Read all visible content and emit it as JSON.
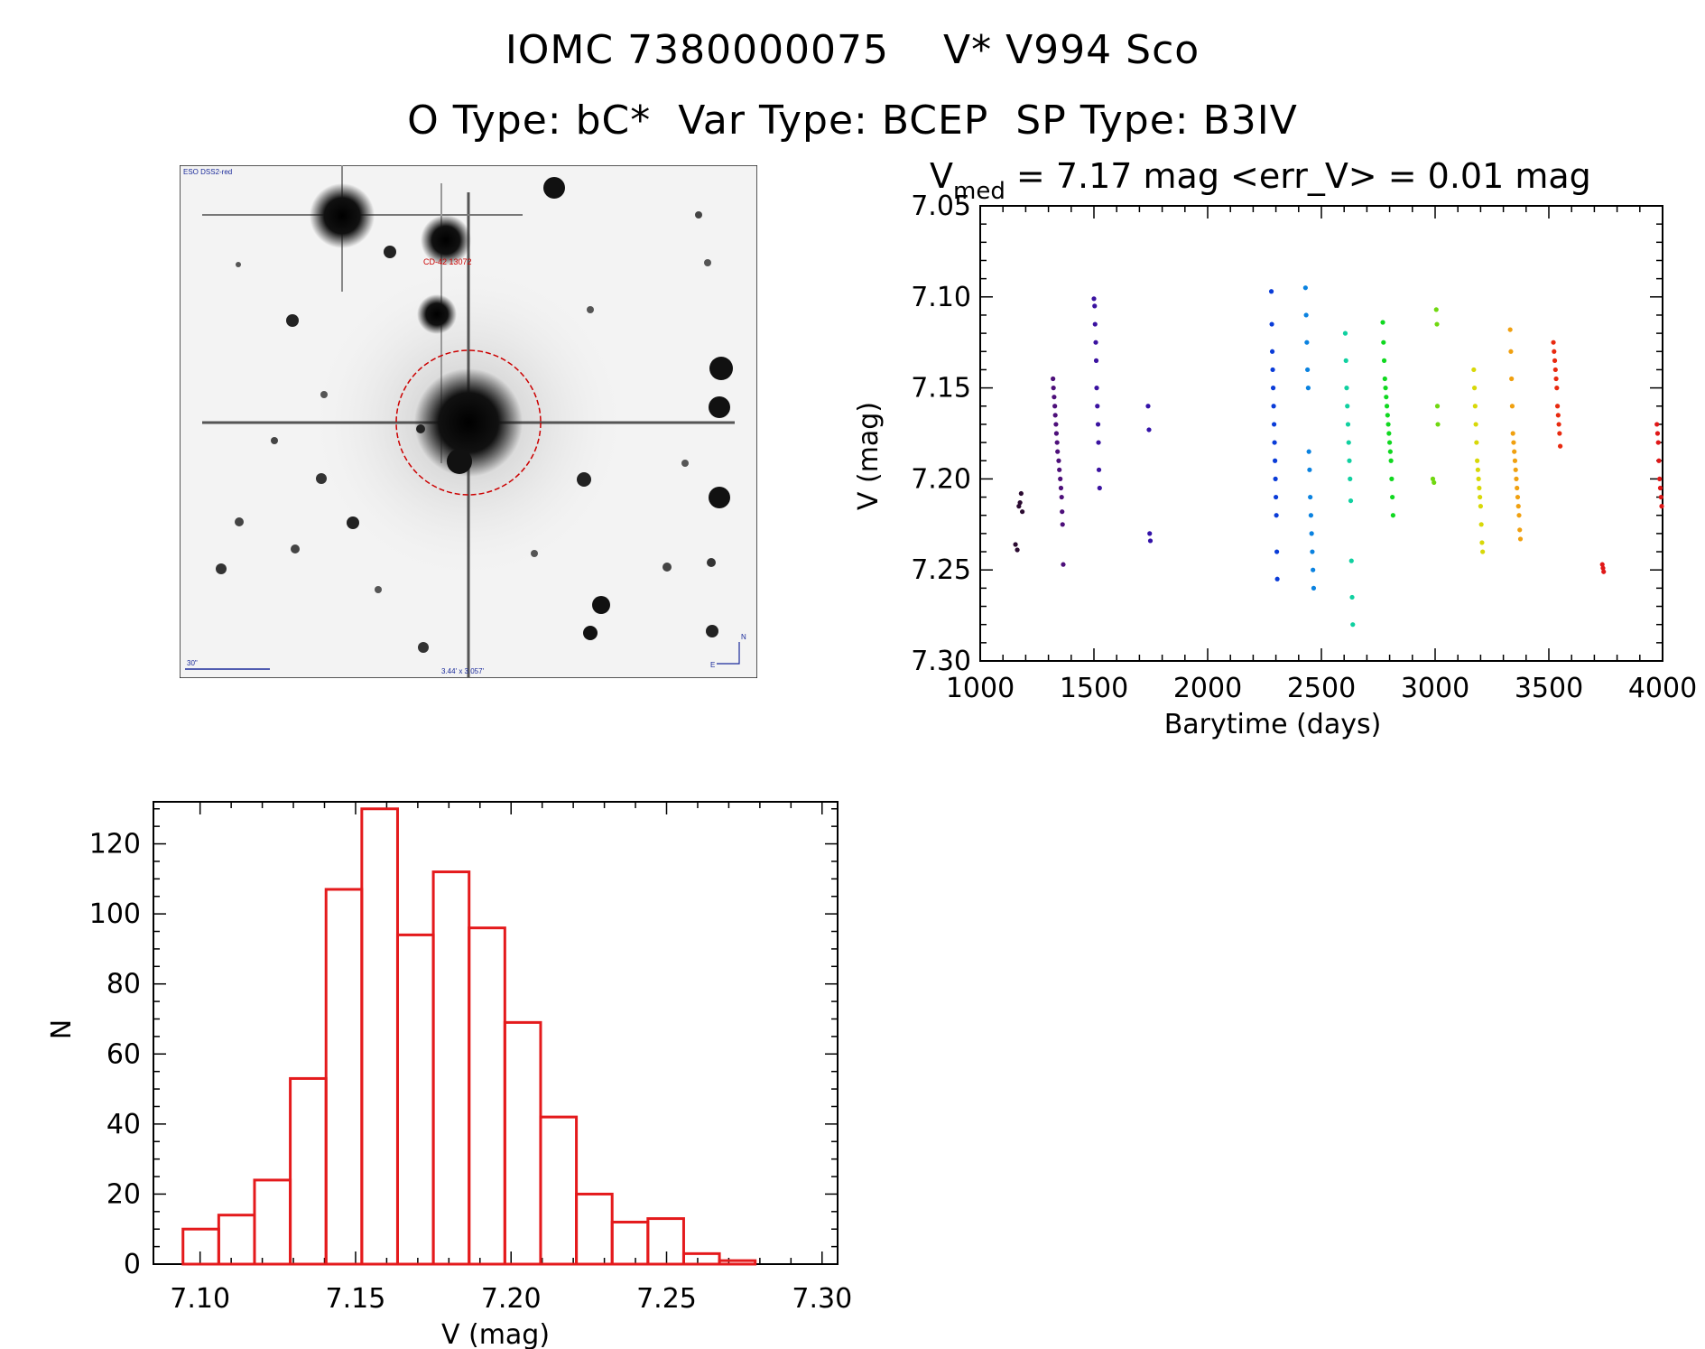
{
  "header": {
    "line1": "IOMC 7380000075    V* V994 Sco",
    "line2": "O Type: bC*  Var Type: BCEP  SP Type: B3IV"
  },
  "finder": {
    "survey_label": "ESO DSS2-red",
    "star_label": "CD-42 13072",
    "scale_label": "30\"",
    "fov_label": "3.44' x 3.057'",
    "north_label": "N",
    "east_label": "E",
    "circle_color": "#cc0000"
  },
  "chart_data": [
    {
      "type": "scatter",
      "title_prefix": "V",
      "title_sub": "med",
      "title_rest": " = 7.17 mag <err_V> = 0.01 mag",
      "xlabel": "Barytime (days)",
      "ylabel": "V (mag)",
      "xlim": [
        1000,
        4000
      ],
      "ylim": [
        7.3,
        7.05
      ],
      "x_ticks": [
        1000,
        1500,
        2000,
        2500,
        3000,
        3500,
        4000
      ],
      "y_ticks": [
        7.05,
        7.1,
        7.15,
        7.2,
        7.25,
        7.3
      ],
      "series": [
        {
          "name": "group-1",
          "color": "#2a0a30",
          "x": [
            1155,
            1163,
            1170,
            1175,
            1180,
            1185
          ],
          "y": [
            7.236,
            7.239,
            7.215,
            7.213,
            7.208,
            7.218
          ]
        },
        {
          "name": "group-2",
          "color": "#4d0f7a",
          "x": [
            1320,
            1322,
            1325,
            1328,
            1330,
            1333,
            1335,
            1338,
            1340,
            1345,
            1348,
            1352,
            1355,
            1358,
            1360,
            1362,
            1365
          ],
          "y": [
            7.145,
            7.15,
            7.155,
            7.16,
            7.165,
            7.17,
            7.175,
            7.18,
            7.185,
            7.19,
            7.195,
            7.2,
            7.205,
            7.21,
            7.218,
            7.225,
            7.247
          ]
        },
        {
          "name": "group-3",
          "color": "#3a12a0",
          "x": [
            1500,
            1503,
            1505,
            1508,
            1510,
            1512,
            1515,
            1518,
            1520,
            1522,
            1525
          ],
          "y": [
            7.101,
            7.105,
            7.115,
            7.125,
            7.135,
            7.15,
            7.16,
            7.17,
            7.18,
            7.195,
            7.205
          ]
        },
        {
          "name": "group-4",
          "color": "#3312a8",
          "x": [
            1738,
            1742,
            1745,
            1748
          ],
          "y": [
            7.16,
            7.173,
            7.23,
            7.234
          ]
        },
        {
          "name": "group-5",
          "color": "#0a3cd8",
          "x": [
            2280,
            2282,
            2284,
            2286,
            2288,
            2290,
            2292,
            2294,
            2296,
            2298,
            2300,
            2302,
            2304,
            2306
          ],
          "y": [
            7.097,
            7.115,
            7.13,
            7.14,
            7.15,
            7.16,
            7.17,
            7.18,
            7.19,
            7.2,
            7.21,
            7.22,
            7.24,
            7.255
          ]
        },
        {
          "name": "group-6",
          "color": "#0a82e0",
          "x": [
            2430,
            2433,
            2436,
            2439,
            2442,
            2445,
            2448,
            2451,
            2454,
            2457,
            2460,
            2463,
            2466
          ],
          "y": [
            7.095,
            7.11,
            7.125,
            7.14,
            7.15,
            7.185,
            7.195,
            7.21,
            7.22,
            7.23,
            7.24,
            7.25,
            7.26
          ]
        },
        {
          "name": "group-7",
          "color": "#10d0a0",
          "x": [
            2605,
            2608,
            2611,
            2614,
            2617,
            2620,
            2623,
            2626,
            2629,
            2632,
            2635,
            2638
          ],
          "y": [
            7.12,
            7.135,
            7.15,
            7.16,
            7.17,
            7.18,
            7.19,
            7.2,
            7.212,
            7.245,
            7.265,
            7.28
          ]
        },
        {
          "name": "group-8",
          "color": "#10d820",
          "x": [
            2770,
            2773,
            2776,
            2779,
            2782,
            2785,
            2788,
            2791,
            2794,
            2797,
            2800,
            2803,
            2806,
            2809,
            2812,
            2815
          ],
          "y": [
            7.114,
            7.125,
            7.135,
            7.145,
            7.15,
            7.155,
            7.16,
            7.165,
            7.17,
            7.175,
            7.18,
            7.185,
            7.19,
            7.2,
            7.21,
            7.22
          ]
        },
        {
          "name": "group-9",
          "color": "#70d810",
          "x": [
            2990,
            2995,
            3005,
            3008,
            3010,
            3012
          ],
          "y": [
            7.2,
            7.202,
            7.107,
            7.115,
            7.16,
            7.17
          ]
        },
        {
          "name": "group-10",
          "color": "#d8d808",
          "x": [
            3170,
            3173,
            3176,
            3179,
            3182,
            3185,
            3188,
            3191,
            3194,
            3197,
            3200,
            3203,
            3206,
            3209
          ],
          "y": [
            7.14,
            7.15,
            7.16,
            7.17,
            7.18,
            7.19,
            7.195,
            7.2,
            7.205,
            7.21,
            7.215,
            7.225,
            7.235,
            7.24
          ]
        },
        {
          "name": "group-11",
          "color": "#f0a010",
          "x": [
            3330,
            3333,
            3336,
            3339,
            3342,
            3345,
            3348,
            3351,
            3354,
            3357,
            3360,
            3363,
            3366,
            3369,
            3372,
            3375
          ],
          "y": [
            7.118,
            7.13,
            7.145,
            7.16,
            7.175,
            7.18,
            7.185,
            7.19,
            7.195,
            7.2,
            7.205,
            7.21,
            7.215,
            7.22,
            7.228,
            7.233
          ]
        },
        {
          "name": "group-12",
          "color": "#e82a10",
          "x": [
            3520,
            3523,
            3526,
            3529,
            3532,
            3535,
            3538,
            3541,
            3544,
            3547,
            3550
          ],
          "y": [
            7.125,
            7.13,
            7.135,
            7.14,
            7.145,
            7.15,
            7.16,
            7.165,
            7.17,
            7.175,
            7.182
          ]
        },
        {
          "name": "group-13",
          "color": "#e01818",
          "x": [
            3735,
            3738,
            3741
          ],
          "y": [
            7.247,
            7.249,
            7.251
          ]
        },
        {
          "name": "group-14",
          "color": "#e01818",
          "x": [
            3975,
            3978,
            3981,
            3984,
            3987,
            3990,
            3993,
            3996
          ],
          "y": [
            7.17,
            7.175,
            7.18,
            7.19,
            7.2,
            7.205,
            7.21,
            7.215
          ]
        }
      ]
    },
    {
      "type": "histogram",
      "xlabel": "V (mag)",
      "ylabel": "N",
      "xlim": [
        7.085,
        7.305
      ],
      "ylim": [
        0,
        132
      ],
      "x_ticks": [
        7.1,
        7.15,
        7.2,
        7.25,
        7.3
      ],
      "y_ticks": [
        0,
        20,
        40,
        60,
        80,
        100,
        120
      ],
      "color": "#e41a1c",
      "bin_start": 7.0945,
      "bin_width": 0.0115,
      "values": [
        10,
        14,
        24,
        53,
        107,
        130,
        94,
        112,
        96,
        69,
        42,
        20,
        12,
        13,
        3,
        1
      ]
    }
  ]
}
